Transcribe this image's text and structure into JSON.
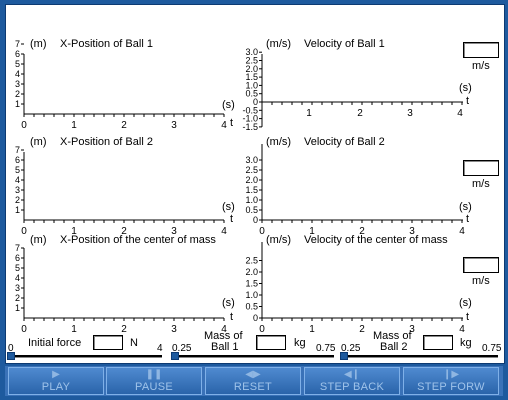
{
  "graphs": [
    {
      "id": "pos1",
      "unit": "(m)",
      "title": "X-Position of Ball 1",
      "yticks": [
        "1",
        "2",
        "3",
        "4",
        "5",
        "6",
        "7"
      ],
      "xticks": [
        "0",
        "1",
        "2",
        "3",
        "4"
      ],
      "tunit": "(s)",
      "tlabel": "t"
    },
    {
      "id": "vel1",
      "unit": "(m/s)",
      "title": "Velocity of Ball 1",
      "yticks": [
        "3.0",
        "2.5",
        "2.0",
        "1.5",
        "1.0",
        "0.5",
        "0",
        "-0.5",
        "-1.0",
        "-1.5"
      ],
      "xticks": [
        "1",
        "2",
        "3",
        "4"
      ],
      "tunit": "(s)",
      "tlabel": "t",
      "readout_unit": "m/s"
    },
    {
      "id": "pos2",
      "unit": "(m)",
      "title": "X-Position of Ball 2",
      "yticks": [
        "1",
        "2",
        "3",
        "4",
        "5",
        "6",
        "7"
      ],
      "xticks": [
        "0",
        "1",
        "2",
        "3",
        "4"
      ],
      "tunit": "(s)",
      "tlabel": "t"
    },
    {
      "id": "vel2",
      "unit": "(m/s)",
      "title": "Velocity of Ball 2",
      "yticks": [
        "3.0",
        "2.5",
        "2.0",
        "1.5",
        "1.0",
        "0.5",
        "0"
      ],
      "xticks": [
        "0",
        "1",
        "2",
        "3",
        "4"
      ],
      "tunit": "(s)",
      "tlabel": "t",
      "readout_unit": "m/s"
    },
    {
      "id": "poscm",
      "unit": "(m)",
      "title": "X-Position of the center of mass",
      "yticks": [
        "1",
        "2",
        "3",
        "4",
        "5",
        "6",
        "7"
      ],
      "xticks": [
        "0",
        "1",
        "2",
        "3",
        "4"
      ],
      "tunit": "(s)",
      "tlabel": "t"
    },
    {
      "id": "velcm",
      "unit": "(m/s)",
      "title": "Velocity of the center of mass",
      "yticks": [
        "2.5",
        "2.0",
        "1.5",
        "1.0",
        "0.5",
        "0"
      ],
      "xticks": [
        "0",
        "1",
        "2",
        "3",
        "4"
      ],
      "tunit": "(s)",
      "tlabel": "t",
      "readout_unit": "m/s"
    }
  ],
  "controls": {
    "force": {
      "label": "Initial force",
      "unit": "N",
      "min": "0",
      "max": "4",
      "value": ""
    },
    "mass1": {
      "label_line1": "Mass of",
      "label_line2": "Ball 1",
      "unit": "kg",
      "min": "0.25",
      "max": "0.75",
      "value": ""
    },
    "mass2": {
      "label_line1": "Mass of",
      "label_line2": "Ball 2",
      "unit": "kg",
      "min": "0.25",
      "max": "0.75",
      "value": ""
    }
  },
  "buttons": [
    {
      "id": "play",
      "label": "PLAY",
      "glyph": "▶"
    },
    {
      "id": "pause",
      "label": "PAUSE",
      "glyph": "❚❚"
    },
    {
      "id": "reset",
      "label": "RESET",
      "glyph": "◀▶"
    },
    {
      "id": "step-back",
      "label": "STEP BACK",
      "glyph": "◀❙"
    },
    {
      "id": "step-forw",
      "label": "STEP FORW",
      "glyph": "❙▶"
    }
  ]
}
